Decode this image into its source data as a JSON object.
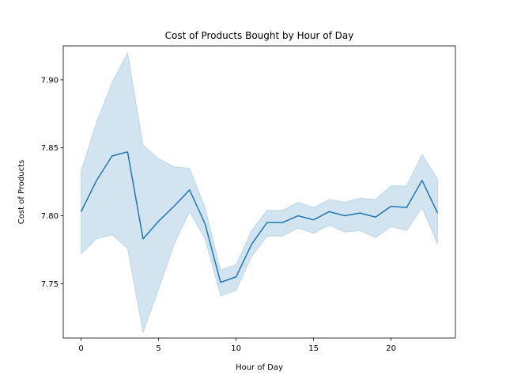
{
  "chart_data": {
    "type": "line",
    "title": "Cost of Products Bought by Hour of Day",
    "xlabel": "Hour of Day",
    "ylabel": "Cost of Products",
    "xlim": [
      -1.15,
      24.15
    ],
    "ylim": [
      7.71,
      7.925
    ],
    "xticks": [
      0,
      5,
      10,
      15,
      20
    ],
    "yticks": [
      7.75,
      7.8,
      7.85,
      7.9
    ],
    "ytick_labels": [
      "7.75",
      "7.80",
      "7.85",
      "7.90"
    ],
    "grid": false,
    "line_color": "#1f77b4",
    "band_color": "#1f77b4",
    "series": [
      {
        "x": [
          0,
          1,
          2,
          3,
          4,
          5,
          6,
          7,
          8,
          9,
          10,
          11,
          12,
          13,
          14,
          15,
          16,
          17,
          18,
          19,
          20,
          21,
          22,
          23
        ],
        "y": [
          7.803,
          7.826,
          7.844,
          7.847,
          7.783,
          7.796,
          7.807,
          7.819,
          7.794,
          7.751,
          7.755,
          7.779,
          7.795,
          7.795,
          7.8,
          7.797,
          7.803,
          7.8,
          7.802,
          7.799,
          7.807,
          7.806,
          7.826,
          7.802
        ],
        "lower": [
          7.772,
          7.783,
          7.786,
          7.776,
          7.714,
          7.746,
          7.779,
          7.803,
          7.783,
          7.741,
          7.745,
          7.77,
          7.785,
          7.785,
          7.791,
          7.787,
          7.793,
          7.788,
          7.789,
          7.784,
          7.792,
          7.789,
          7.806,
          7.779
        ],
        "upper": [
          7.833,
          7.869,
          7.898,
          7.92,
          7.852,
          7.842,
          7.836,
          7.835,
          7.806,
          7.76,
          7.764,
          7.789,
          7.804,
          7.804,
          7.81,
          7.806,
          7.812,
          7.81,
          7.813,
          7.812,
          7.822,
          7.822,
          7.845,
          7.827
        ]
      }
    ]
  }
}
